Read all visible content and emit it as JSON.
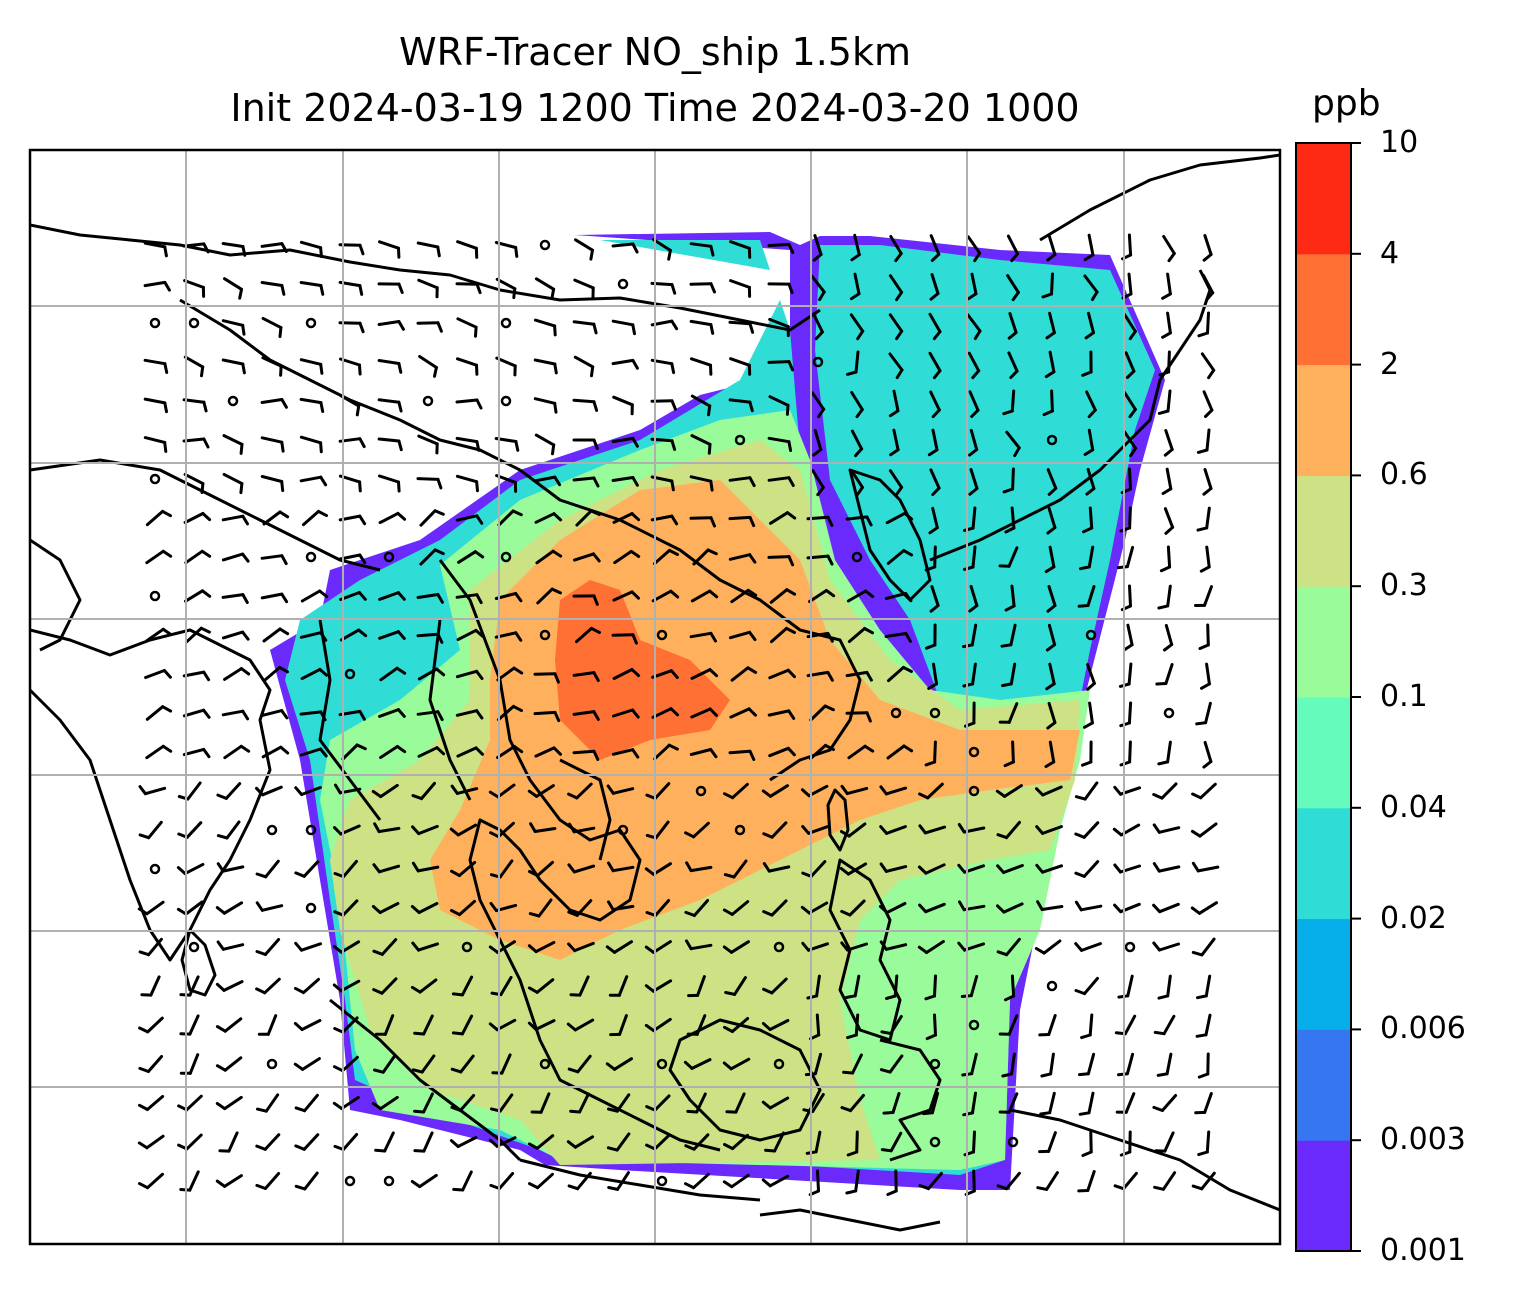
{
  "title": {
    "line1": "WRF-Tracer NO_ship 1.5km",
    "line2": "Init 2024-03-19 1200 Time 2024-03-20 1000"
  },
  "colorbar": {
    "unit": "ppb",
    "levels": [
      "0.001",
      "0.003",
      "0.006",
      "0.02",
      "0.04",
      "0.1",
      "0.3",
      "0.6",
      "2",
      "4",
      "10"
    ],
    "colors": [
      "#6a2afc",
      "#3577f1",
      "#06aeea",
      "#30ddd6",
      "#65fbbc",
      "#99fb9a",
      "#cce285",
      "#ffb05c",
      "#ff7034",
      "#ff2a14"
    ]
  },
  "map": {
    "background": "#ffffff",
    "coastline_color": "#000000",
    "gridline_color": "#b0b0b0",
    "wind_barb_color": "#000000"
  }
}
